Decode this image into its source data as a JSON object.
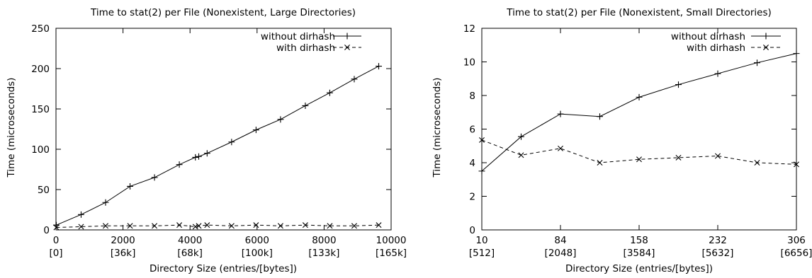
{
  "chart_data": [
    {
      "type": "line",
      "title": "Time to stat(2) per File (Nonexistent, Large Directories)",
      "xlabel": "Directory Size (entries/[bytes])",
      "ylabel": "Time (microseconds)",
      "xlim": [
        0,
        10000
      ],
      "ylim": [
        0,
        250
      ],
      "xticks": [
        {
          "value": 0,
          "line1": "0",
          "line2": "[0]"
        },
        {
          "value": 2000,
          "line1": "2000",
          "line2": "[36k]"
        },
        {
          "value": 4000,
          "line1": "4000",
          "line2": "[68k]"
        },
        {
          "value": 6000,
          "line1": "6000",
          "line2": "[100k]"
        },
        {
          "value": 8000,
          "line1": "8000",
          "line2": "[133k]"
        },
        {
          "value": 10000,
          "line1": "10000",
          "line2": "[165k]"
        }
      ],
      "yticks": [
        0,
        50,
        100,
        150,
        200,
        250
      ],
      "legend_position": "top-right",
      "grid": false,
      "series": [
        {
          "name": "without dirhash",
          "style": "solid",
          "marker": "plus",
          "x": [
            10,
            750,
            1480,
            2210,
            2940,
            3680,
            4160,
            4260,
            4510,
            5240,
            5970,
            6700,
            7440,
            8170,
            8900,
            9630
          ],
          "y": [
            6,
            19,
            34,
            54,
            65,
            81,
            90,
            91,
            95,
            109,
            124,
            137,
            154,
            170,
            187,
            203
          ]
        },
        {
          "name": "with dirhash",
          "style": "dashed",
          "marker": "cross",
          "x": [
            10,
            750,
            1480,
            2210,
            2940,
            3680,
            4160,
            4260,
            4510,
            5240,
            5970,
            6700,
            7440,
            8170,
            8900,
            9630
          ],
          "y": [
            3,
            4,
            5,
            5,
            5,
            6,
            4,
            5,
            6,
            5,
            6,
            5,
            6,
            5,
            5,
            6
          ]
        }
      ]
    },
    {
      "type": "line",
      "title": "Time to stat(2) per File (Nonexistent, Small Directories)",
      "xlabel": "Directory Size (entries/[bytes])",
      "ylabel": "Time (microseconds)",
      "xlim": [
        10,
        306
      ],
      "ylim": [
        0,
        12
      ],
      "xticks": [
        {
          "value": 10,
          "line1": "10",
          "line2": "[512]"
        },
        {
          "value": 84,
          "line1": "84",
          "line2": "[2048]"
        },
        {
          "value": 158,
          "line1": "158",
          "line2": "[3584]"
        },
        {
          "value": 232,
          "line1": "232",
          "line2": "[5632]"
        },
        {
          "value": 306,
          "line1": "306",
          "line2": "[6656]"
        }
      ],
      "yticks": [
        0,
        2,
        4,
        6,
        8,
        10,
        12
      ],
      "legend_position": "top-right",
      "grid": false,
      "series": [
        {
          "name": "without dirhash",
          "style": "solid",
          "marker": "plus",
          "x": [
            10,
            47,
            84,
            121,
            158,
            195,
            232,
            269,
            306
          ],
          "y": [
            3.5,
            5.55,
            6.9,
            6.75,
            7.9,
            8.65,
            9.3,
            9.95,
            10.5
          ]
        },
        {
          "name": "with dirhash",
          "style": "dashed",
          "marker": "cross",
          "x": [
            10,
            47,
            84,
            121,
            158,
            195,
            232,
            269,
            306
          ],
          "y": [
            5.35,
            4.45,
            4.85,
            4.0,
            4.2,
            4.3,
            4.4,
            4.0,
            3.9
          ]
        }
      ]
    }
  ]
}
